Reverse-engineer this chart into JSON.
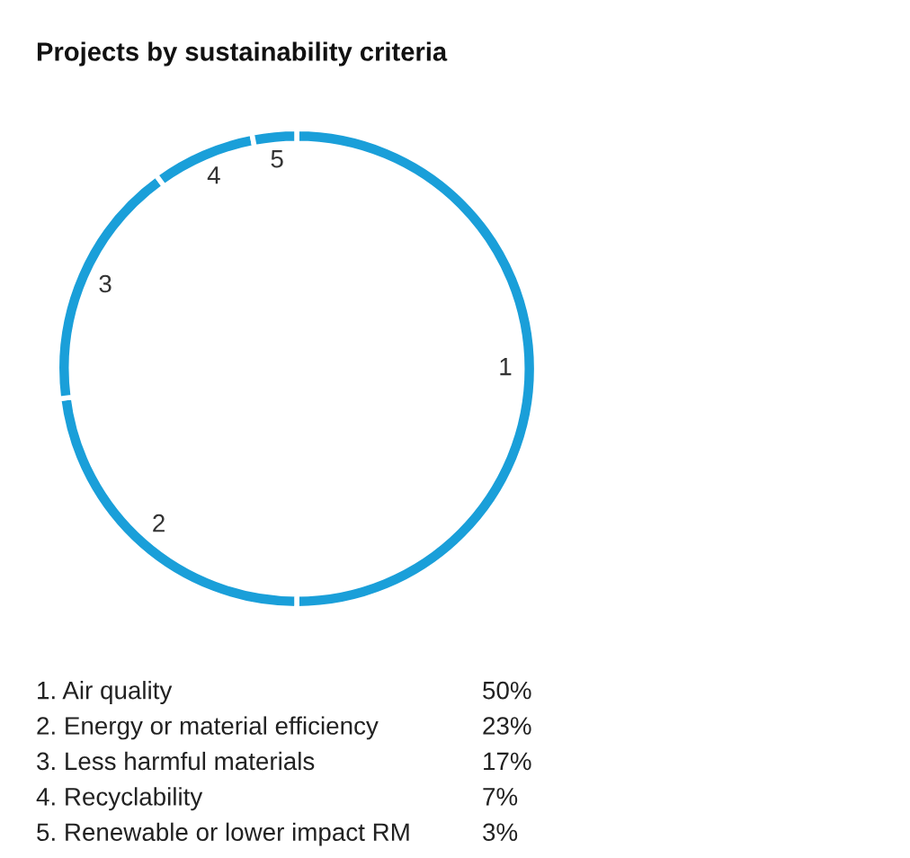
{
  "chart_data": {
    "type": "donut",
    "title": "Projects by sustainability criteria",
    "categories": [
      "1",
      "2",
      "3",
      "4",
      "5"
    ],
    "values": [
      50,
      23,
      17,
      7,
      3
    ],
    "colors": [
      "#1a9fd9",
      "#1a9fd9",
      "#1a9fd9",
      "#1a9fd9",
      "#1a9fd9"
    ],
    "annotations": [
      "1. Air quality",
      "50%",
      "2. Energy or material efficiency",
      "23%",
      "3. Less harmful materials",
      "17%",
      "4. Recyclability",
      "7%",
      "5. Renewable or lower impact RM",
      "3%"
    ]
  }
}
